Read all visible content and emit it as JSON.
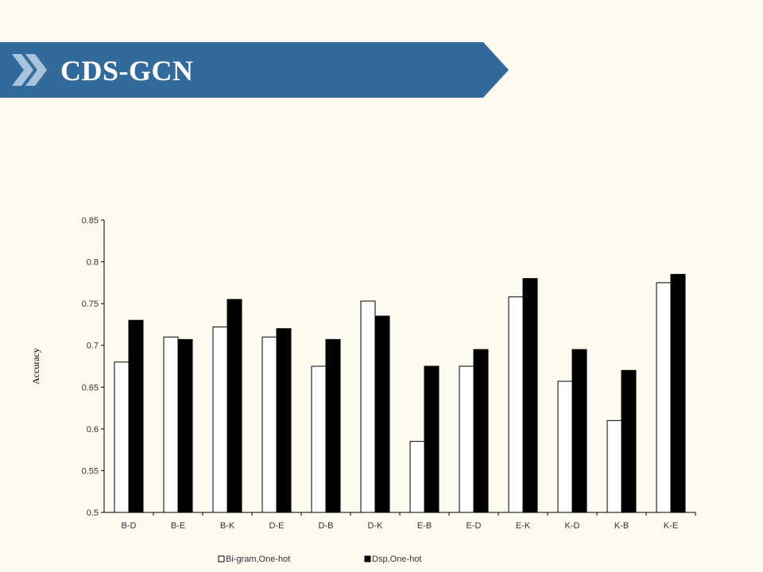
{
  "slide": {
    "title": "CDS-GCN"
  },
  "colors": {
    "banner": "#336a9c",
    "chevron_light": "#a9c3dc",
    "background": "#fdfaf0",
    "series_1_fill": "#ffffff",
    "series_2_fill": "#000000"
  },
  "icons": {
    "banner_chevron": "double-chevron-right-icon"
  },
  "chart_data": {
    "type": "bar",
    "title": "",
    "xlabel": "",
    "ylabel": "Accuracy",
    "categories": [
      "B-D",
      "B-E",
      "B-K",
      "D-E",
      "D-B",
      "D-K",
      "E-B",
      "E-D",
      "E-K",
      "K-D",
      "K-B",
      "K-E"
    ],
    "series": [
      {
        "name": "Bi-gram,One-hot",
        "values": [
          0.68,
          0.71,
          0.722,
          0.71,
          0.675,
          0.753,
          0.585,
          0.675,
          0.758,
          0.657,
          0.61,
          0.775
        ]
      },
      {
        "name": "Dsp,One-hot",
        "values": [
          0.73,
          0.707,
          0.755,
          0.72,
          0.707,
          0.735,
          0.675,
          0.695,
          0.78,
          0.695,
          0.67,
          0.785
        ]
      }
    ],
    "ylim": [
      0.5,
      0.85
    ],
    "yticks": [
      "0.5",
      "0.55",
      "0.6",
      "0.65",
      "0.7",
      "0.75",
      "0.8",
      "0.85"
    ],
    "grid": false,
    "legend_position": "bottom"
  }
}
